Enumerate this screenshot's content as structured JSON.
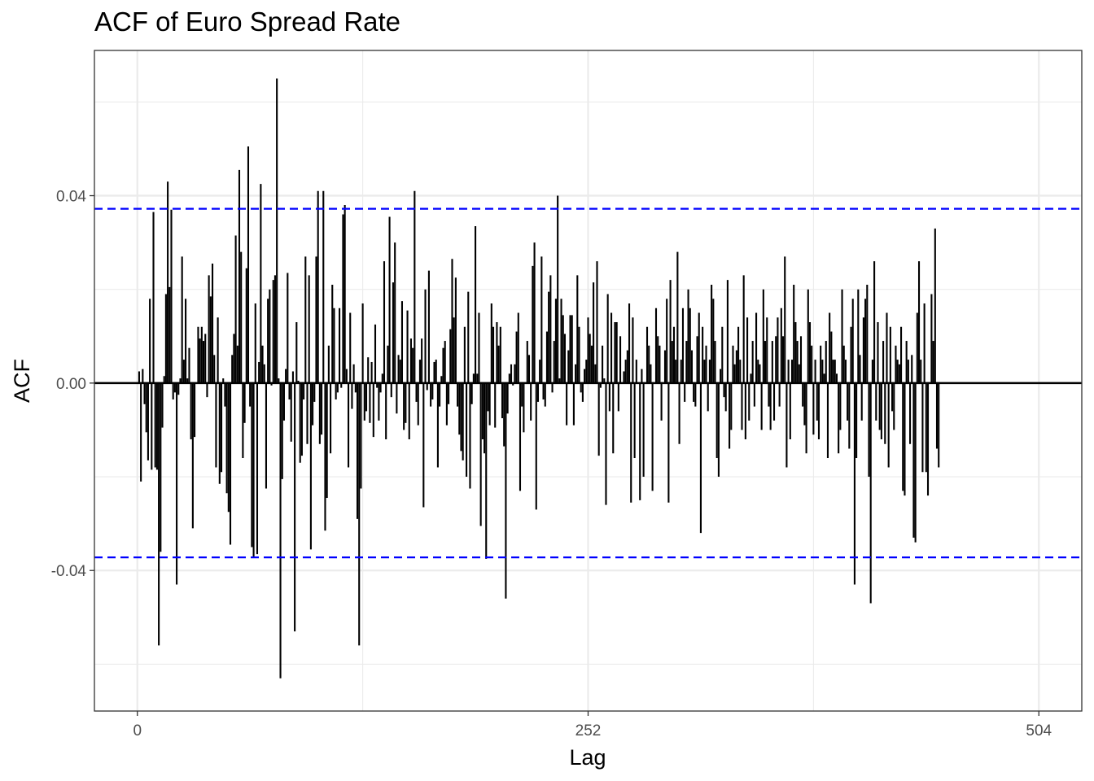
{
  "chart_data": {
    "type": "bar",
    "title": "ACF of Euro Spread Rate",
    "xlabel": "Lag",
    "ylabel": "ACF",
    "xlim": [
      -24,
      528
    ],
    "ylim": [
      -0.07,
      0.071
    ],
    "x_ticks": [
      0,
      252,
      504
    ],
    "x_tick_labels": [
      "0",
      "252",
      "504"
    ],
    "y_ticks": [
      -0.04,
      0.0,
      0.04
    ],
    "y_tick_labels": [
      "-0.04",
      "0.00",
      "0.04"
    ],
    "confidence_bound": 0.0372,
    "grid": true,
    "legend": "none",
    "colors": {
      "bars": "#000000",
      "bounds": "#0000ff",
      "grid": "#ebebeb",
      "panel_border": "#333333"
    },
    "lags_start": 1,
    "values": [
      0.0025,
      -0.021,
      0.003,
      -0.0045,
      -0.0105,
      -0.0165,
      0.018,
      -0.0185,
      0.0365,
      -0.018,
      -0.0185,
      -0.056,
      -0.036,
      -0.0095,
      0.0015,
      0.019,
      0.043,
      0.0205,
      0.037,
      -0.0035,
      -0.002,
      -0.043,
      -0.0025,
      0.001,
      0.027,
      0.005,
      0.018,
      0.001,
      0.0075,
      -0.012,
      -0.031,
      -0.0115,
      0.0,
      0.012,
      0.0095,
      0.012,
      0.009,
      0.0105,
      -0.003,
      0.023,
      0.0185,
      0.0255,
      0.006,
      -0.018,
      0.014,
      -0.0215,
      -0.019,
      0.001,
      -0.005,
      -0.0235,
      -0.0275,
      -0.0345,
      0.006,
      0.0105,
      0.0315,
      0.008,
      0.0455,
      0.028,
      -0.016,
      -0.0085,
      0.0245,
      0.0505,
      -0.005,
      -0.035,
      -0.037,
      0.017,
      -0.0365,
      0.0045,
      0.0425,
      0.008,
      0.004,
      -0.0225,
      0.018,
      0.02,
      -0.0005,
      0.022,
      0.023,
      0.065,
      0.001,
      -0.063,
      -0.0205,
      -0.008,
      0.003,
      0.0235,
      -0.0035,
      -0.0125,
      0.0025,
      -0.053,
      0.013,
      0.0005,
      -0.017,
      -0.0155,
      -0.0035,
      0.027,
      -0.013,
      0.023,
      -0.0355,
      -0.009,
      -0.004,
      0.027,
      0.041,
      -0.013,
      -0.011,
      0.041,
      -0.0315,
      -0.0245,
      0.008,
      -0.015,
      0.021,
      0.016,
      -0.0035,
      -0.002,
      0.016,
      -0.001,
      0.036,
      0.038,
      0.003,
      -0.018,
      0.015,
      -0.0055,
      0.004,
      -0.002,
      -0.029,
      -0.056,
      -0.0225,
      0.017,
      -0.008,
      -0.006,
      0.0055,
      -0.0085,
      0.0045,
      -0.0115,
      0.0125,
      -0.001,
      -0.008,
      -0.002,
      0.002,
      0.026,
      -0.012,
      0.008,
      0.0355,
      -0.003,
      0.0215,
      0.03,
      -0.0065,
      0.006,
      0.005,
      0.0175,
      -0.01,
      -0.0085,
      0.0155,
      -0.012,
      0.0095,
      0.0075,
      0.041,
      -0.004,
      -0.009,
      0.005,
      0.0095,
      -0.0265,
      0.02,
      -0.0015,
      0.024,
      -0.005,
      -0.0035,
      0.0045,
      0.005,
      -0.018,
      -0.005,
      0.0015,
      0.0075,
      0.009,
      -0.009,
      -0.0045,
      0.0115,
      0.0265,
      0.014,
      0.0225,
      -0.005,
      -0.011,
      -0.0145,
      -0.0165,
      0.012,
      -0.02,
      0.0195,
      -0.0225,
      -0.0045,
      0.002,
      0.0335,
      0.002,
      0.015,
      -0.0305,
      -0.012,
      -0.015,
      -0.0375,
      -0.006,
      -0.009,
      0.017,
      0.012,
      -0.0095,
      0.013,
      0.008,
      0.012,
      -0.0075,
      -0.0135,
      -0.046,
      -0.0065,
      0.002,
      0.004,
      -0.0005,
      0.004,
      0.011,
      0.015,
      -0.023,
      -0.005,
      -0.0105,
      0.0,
      0.009,
      0.006,
      -0.008,
      0.025,
      0.03,
      -0.027,
      -0.004,
      0.005,
      0.027,
      -0.0035,
      -0.005,
      0.011,
      0.0195,
      0.023,
      -0.002,
      0.009,
      0.018,
      0.04,
      0.001,
      0.018,
      0.0145,
      0.0105,
      -0.009,
      0.007,
      0.0145,
      0.0145,
      -0.009,
      0.004,
      0.023,
      0.012,
      -0.002,
      -0.004,
      0.003,
      0.005,
      0.014,
      0.0105,
      0.008,
      0.0215,
      0.004,
      0.026,
      -0.0155,
      -0.001,
      0.008,
      0.001,
      -0.026,
      0.019,
      -0.006,
      0.015,
      -0.015,
      0.013,
      0.013,
      -0.006,
      0.01,
      0.0,
      0.0025,
      0.005,
      0.007,
      0.017,
      -0.0255,
      0.014,
      -0.016,
      0.005,
      0.0,
      -0.025,
      0.003,
      -0.02,
      0.0,
      0.012,
      0.008,
      0.004,
      -0.023,
      0.0,
      0.016,
      0.01,
      0.008,
      -0.008,
      0.0,
      0.007,
      0.018,
      -0.0255,
      0.022,
      0.009,
      0.012,
      0.005,
      0.028,
      -0.013,
      0.005,
      0.016,
      -0.004,
      0.009,
      0.02,
      0.016,
      0.007,
      -0.004,
      -0.005,
      0.01,
      0.015,
      -0.032,
      0.012,
      0.005,
      0.008,
      -0.006,
      0.005,
      0.021,
      0.018,
      0.009,
      -0.016,
      -0.02,
      0.003,
      0.012,
      -0.003,
      -0.006,
      0.022,
      -0.014,
      -0.01,
      0.008,
      0.004,
      0.007,
      0.012,
      0.005,
      -0.01,
      0.023,
      -0.012,
      0.014,
      -0.008,
      0.002,
      0.009,
      -0.005,
      0.015,
      0.005,
      0.004,
      -0.01,
      0.02,
      0.009,
      0.014,
      -0.005,
      -0.01,
      0.009,
      -0.008,
      0.01,
      0.014,
      -0.005,
      0.016,
      0.01,
      0.027,
      -0.018,
      0.005,
      -0.012,
      0.005,
      0.021,
      0.013,
      0.009,
      0.004,
      0.01,
      -0.005,
      -0.009,
      -0.015,
      0.02,
      0.013,
      0.008,
      -0.011,
      0.005,
      -0.008,
      -0.012,
      0.008,
      0.005,
      0.002,
      0.009,
      -0.016,
      0.015,
      0.011,
      0.005,
      0.005,
      0.002,
      -0.015,
      -0.01,
      0.02,
      0.008,
      0.005,
      -0.008,
      -0.014,
      0.012,
      0.018,
      -0.043,
      -0.016,
      0.02,
      0.006,
      -0.008,
      0.014,
      0.018,
      0.021,
      -0.02,
      -0.047,
      0.005,
      0.026,
      -0.008,
      0.013,
      -0.01,
      -0.012,
      0.009,
      -0.013,
      0.015,
      -0.018,
      0.012,
      -0.006,
      -0.01,
      0.008,
      0.005,
      0.004,
      0.012,
      -0.023,
      -0.024,
      0.009,
      0.005,
      -0.013,
      0.006,
      -0.033,
      -0.034,
      0.015,
      0.026,
      0.005,
      -0.019,
      0.017,
      -0.019,
      -0.024,
      0.0,
      0.019,
      0.009,
      0.033,
      -0.014,
      -0.018
    ]
  }
}
